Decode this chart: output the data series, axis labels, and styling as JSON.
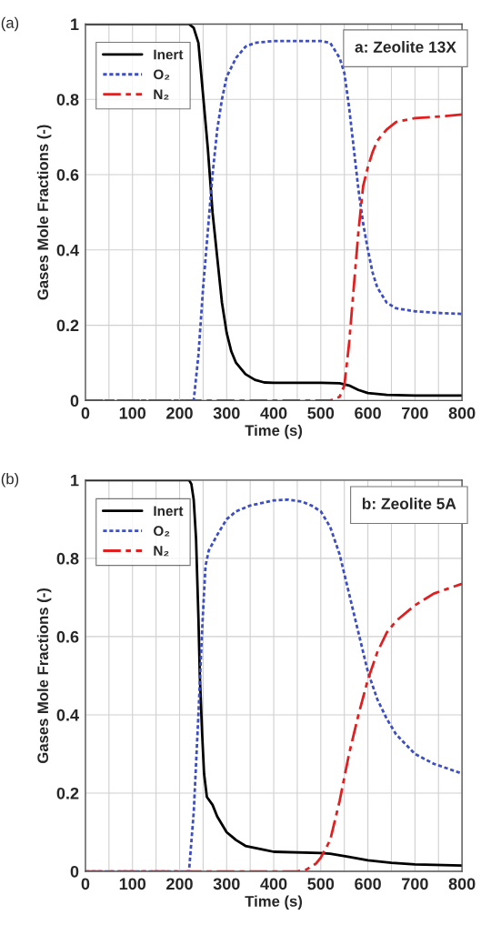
{
  "chart_data": [
    {
      "type": "line",
      "title": "a: Zeolite 13X",
      "xlabel": "Time (s)",
      "ylabel": "Gases Mole Fractions (-)",
      "annotations": [
        "(a)"
      ],
      "xlim": [
        0,
        800
      ],
      "ylim": [
        0,
        1
      ],
      "xticks": [
        0,
        {
          "value": 50,
          "label": null
        },
        100,
        {
          "value": 150,
          "label": null
        },
        200,
        {
          "value": 250,
          "label": null
        },
        300,
        {
          "value": 350,
          "label": null
        },
        400,
        {
          "value": 450,
          "label": null
        },
        500,
        {
          "value": 550,
          "label": null
        },
        600,
        {
          "value": 650,
          "label": null
        },
        700,
        {
          "value": 750,
          "label": null
        },
        800
      ],
      "yticks": [
        0,
        0.2,
        0.4,
        0.6,
        0.8,
        1
      ],
      "grid": true,
      "legend": "top left",
      "series": [
        {
          "name": "Inert",
          "color": "#000000",
          "line_style": "solid",
          "x": [
            0,
            220,
            230,
            240,
            250,
            260,
            270,
            280,
            290,
            300,
            310,
            320,
            340,
            360,
            380,
            400,
            500,
            540,
            560,
            580,
            600,
            640,
            700,
            800
          ],
          "values": [
            1,
            1,
            0.99,
            0.95,
            0.81,
            0.67,
            0.5,
            0.38,
            0.26,
            0.18,
            0.13,
            0.1,
            0.07,
            0.055,
            0.048,
            0.047,
            0.047,
            0.046,
            0.04,
            0.028,
            0.02,
            0.015,
            0.013,
            0.013
          ]
        },
        {
          "name": "O₂",
          "color": "#3d4fc0",
          "line_style": "dotted",
          "x": [
            0,
            230,
            240,
            250,
            260,
            270,
            280,
            290,
            300,
            320,
            340,
            360,
            400,
            500,
            520,
            540,
            550,
            560,
            570,
            580,
            590,
            600,
            610,
            620,
            640,
            660,
            700,
            760,
            800
          ],
          "values": [
            0,
            0,
            0.12,
            0.3,
            0.45,
            0.6,
            0.72,
            0.8,
            0.86,
            0.91,
            0.94,
            0.95,
            0.955,
            0.955,
            0.95,
            0.91,
            0.87,
            0.78,
            0.67,
            0.56,
            0.47,
            0.4,
            0.34,
            0.3,
            0.26,
            0.245,
            0.237,
            0.232,
            0.23
          ]
        },
        {
          "name": "N₂",
          "color": "#e02020",
          "line_style": "dashed",
          "x": [
            0,
            520,
            540,
            550,
            560,
            570,
            580,
            590,
            600,
            610,
            620,
            640,
            660,
            700,
            760,
            800
          ],
          "values": [
            0,
            0,
            0.01,
            0.04,
            0.15,
            0.3,
            0.45,
            0.57,
            0.62,
            0.66,
            0.69,
            0.72,
            0.74,
            0.75,
            0.755,
            0.76
          ]
        }
      ]
    },
    {
      "type": "line",
      "title": "b: Zeolite 5A",
      "xlabel": "Time (s)",
      "ylabel": "Gases Mole Fractions (-)",
      "annotations": [
        "(b)"
      ],
      "xlim": [
        0,
        800
      ],
      "ylim": [
        0,
        1
      ],
      "xticks": [
        0,
        {
          "value": 50,
          "label": null
        },
        100,
        {
          "value": 150,
          "label": null
        },
        200,
        {
          "value": 250,
          "label": null
        },
        300,
        {
          "value": 350,
          "label": null
        },
        400,
        {
          "value": 450,
          "label": null
        },
        500,
        {
          "value": 550,
          "label": null
        },
        600,
        {
          "value": 650,
          "label": null
        },
        700,
        {
          "value": 750,
          "label": null
        },
        800
      ],
      "yticks": [
        0,
        0.2,
        0.4,
        0.6,
        0.8,
        1
      ],
      "grid": true,
      "legend": "top left",
      "series": [
        {
          "name": "Inert",
          "color": "#000000",
          "line_style": "solid",
          "x": [
            0,
            220,
            225,
            230,
            235,
            240,
            243,
            248,
            252,
            258,
            270,
            280,
            300,
            320,
            340,
            380,
            400,
            500,
            520,
            560,
            600,
            650,
            700,
            800
          ],
          "values": [
            1,
            1,
            0.99,
            0.95,
            0.85,
            0.65,
            0.5,
            0.35,
            0.25,
            0.19,
            0.17,
            0.14,
            0.1,
            0.08,
            0.065,
            0.055,
            0.05,
            0.047,
            0.045,
            0.037,
            0.028,
            0.022,
            0.018,
            0.015
          ]
        },
        {
          "name": "O₂",
          "color": "#3d4fc0",
          "line_style": "dotted",
          "x": [
            0,
            220,
            230,
            240,
            248,
            255,
            262,
            280,
            300,
            320,
            350,
            400,
            430,
            460,
            480,
            500,
            520,
            540,
            560,
            580,
            600,
            620,
            640,
            660,
            700,
            740,
            800
          ],
          "values": [
            0,
            0,
            0.15,
            0.4,
            0.62,
            0.78,
            0.82,
            0.86,
            0.9,
            0.92,
            0.935,
            0.948,
            0.95,
            0.945,
            0.935,
            0.92,
            0.88,
            0.81,
            0.71,
            0.61,
            0.51,
            0.44,
            0.39,
            0.35,
            0.3,
            0.275,
            0.25
          ]
        },
        {
          "name": "N₂",
          "color": "#e02020",
          "line_style": "dashed",
          "x": [
            0,
            450,
            470,
            490,
            500,
            520,
            540,
            560,
            580,
            600,
            620,
            640,
            660,
            700,
            740,
            800
          ],
          "values": [
            0,
            0,
            0.005,
            0.02,
            0.035,
            0.08,
            0.18,
            0.3,
            0.4,
            0.49,
            0.56,
            0.61,
            0.64,
            0.68,
            0.71,
            0.735
          ]
        }
      ]
    }
  ]
}
